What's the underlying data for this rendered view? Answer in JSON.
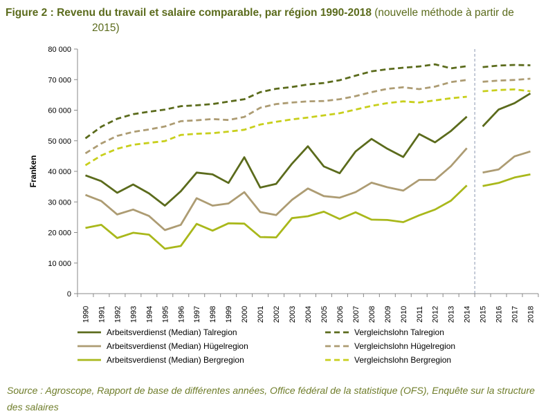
{
  "title_bold": "Figure 2 : Revenu du travail et salaire comparable, par région 1990-2018",
  "title_normal": " (nouvelle méthode à partir de",
  "title_line2": "2015)",
  "source": "Source : Agroscope, Rapport de base de différentes années, Office fédéral de la statistique (OFS), Enquête sur la structure des salaires",
  "chart_data": {
    "type": "line",
    "ylabel": "Franken",
    "xlabel": "",
    "ylim": [
      0,
      80000
    ],
    "yticks": [
      0,
      10000,
      20000,
      30000,
      40000,
      50000,
      60000,
      70000,
      80000
    ],
    "ytick_labels": [
      "0",
      "10 000",
      "20 000",
      "30 000",
      "40 000",
      "50 000",
      "60 000",
      "70 000",
      "80 000"
    ],
    "categories": [
      "1990",
      "1991",
      "1992",
      "1993",
      "1994",
      "1995",
      "1996",
      "1997",
      "1998",
      "1999",
      "2000",
      "2001",
      "2002",
      "2003",
      "2004",
      "2005",
      "2006",
      "2007",
      "2008",
      "2009",
      "2010",
      "2011",
      "2012",
      "2013",
      "2014",
      "2015",
      "2016",
      "2017",
      "2018"
    ],
    "break_between": [
      "2014",
      "2015"
    ],
    "grid": false,
    "legend_position": "bottom",
    "series": [
      {
        "name": "Arbeitsverdienst (Median) Talregion",
        "color": "#5b6b1c",
        "dash": false,
        "values": [
          38700,
          36800,
          33000,
          35700,
          32800,
          28800,
          33500,
          39600,
          39000,
          36200,
          44600,
          34700,
          35900,
          42500,
          48200,
          41600,
          39400,
          46500,
          50600,
          47400,
          44700,
          52200,
          49500,
          53200,
          57900,
          54700,
          60200,
          62300,
          65500
        ]
      },
      {
        "name": "Vergleichslohn Talregion",
        "color": "#5b6b1c",
        "dash": true,
        "values": [
          50800,
          54600,
          57200,
          58700,
          59500,
          60200,
          61300,
          61600,
          62000,
          62800,
          63600,
          65900,
          67000,
          67600,
          68400,
          68900,
          69800,
          71300,
          72700,
          73400,
          73900,
          74300,
          75000,
          73700,
          74400,
          74100,
          74600,
          74800,
          74700
        ]
      },
      {
        "name": "Arbeitsverdienst (Median) Hügelregion",
        "color": "#ad9c73",
        "dash": false,
        "values": [
          32300,
          30300,
          25900,
          27500,
          25400,
          20800,
          22500,
          31200,
          28800,
          29500,
          33200,
          26700,
          25700,
          30700,
          34400,
          31900,
          31400,
          33200,
          36300,
          34800,
          33700,
          37200,
          37200,
          41700,
          47600,
          39600,
          40600,
          44900,
          46500
        ]
      },
      {
        "name": "Vergleichslohn Hügelregion",
        "color": "#ad9c73",
        "dash": true,
        "values": [
          45900,
          49100,
          51600,
          52900,
          53700,
          54700,
          56400,
          56700,
          57100,
          56800,
          57800,
          60800,
          62000,
          62500,
          62900,
          63000,
          63600,
          64600,
          65900,
          67000,
          67500,
          66900,
          67700,
          69200,
          69900,
          69300,
          69700,
          69900,
          70300
        ]
      },
      {
        "name": "Arbeitsverdienst (Median) Bergregion",
        "color": "#a9b81b",
        "dash": false,
        "values": [
          21500,
          22500,
          18200,
          19900,
          19300,
          14700,
          15600,
          22800,
          20600,
          23000,
          22900,
          18500,
          18400,
          24700,
          25300,
          26800,
          24400,
          26600,
          24200,
          24100,
          23400,
          25600,
          27500,
          30400,
          35400,
          35200,
          36200,
          38000,
          39000
        ]
      },
      {
        "name": "Vergleichslohn Bergregion",
        "color": "#c8cf1c",
        "dash": true,
        "values": [
          42000,
          45200,
          47400,
          48700,
          49300,
          49900,
          51900,
          52300,
          52500,
          53000,
          53600,
          55300,
          56200,
          57000,
          57600,
          58300,
          59000,
          60200,
          61400,
          62300,
          62900,
          62500,
          63200,
          63900,
          64400,
          66200,
          66600,
          66800,
          66200
        ]
      }
    ]
  }
}
